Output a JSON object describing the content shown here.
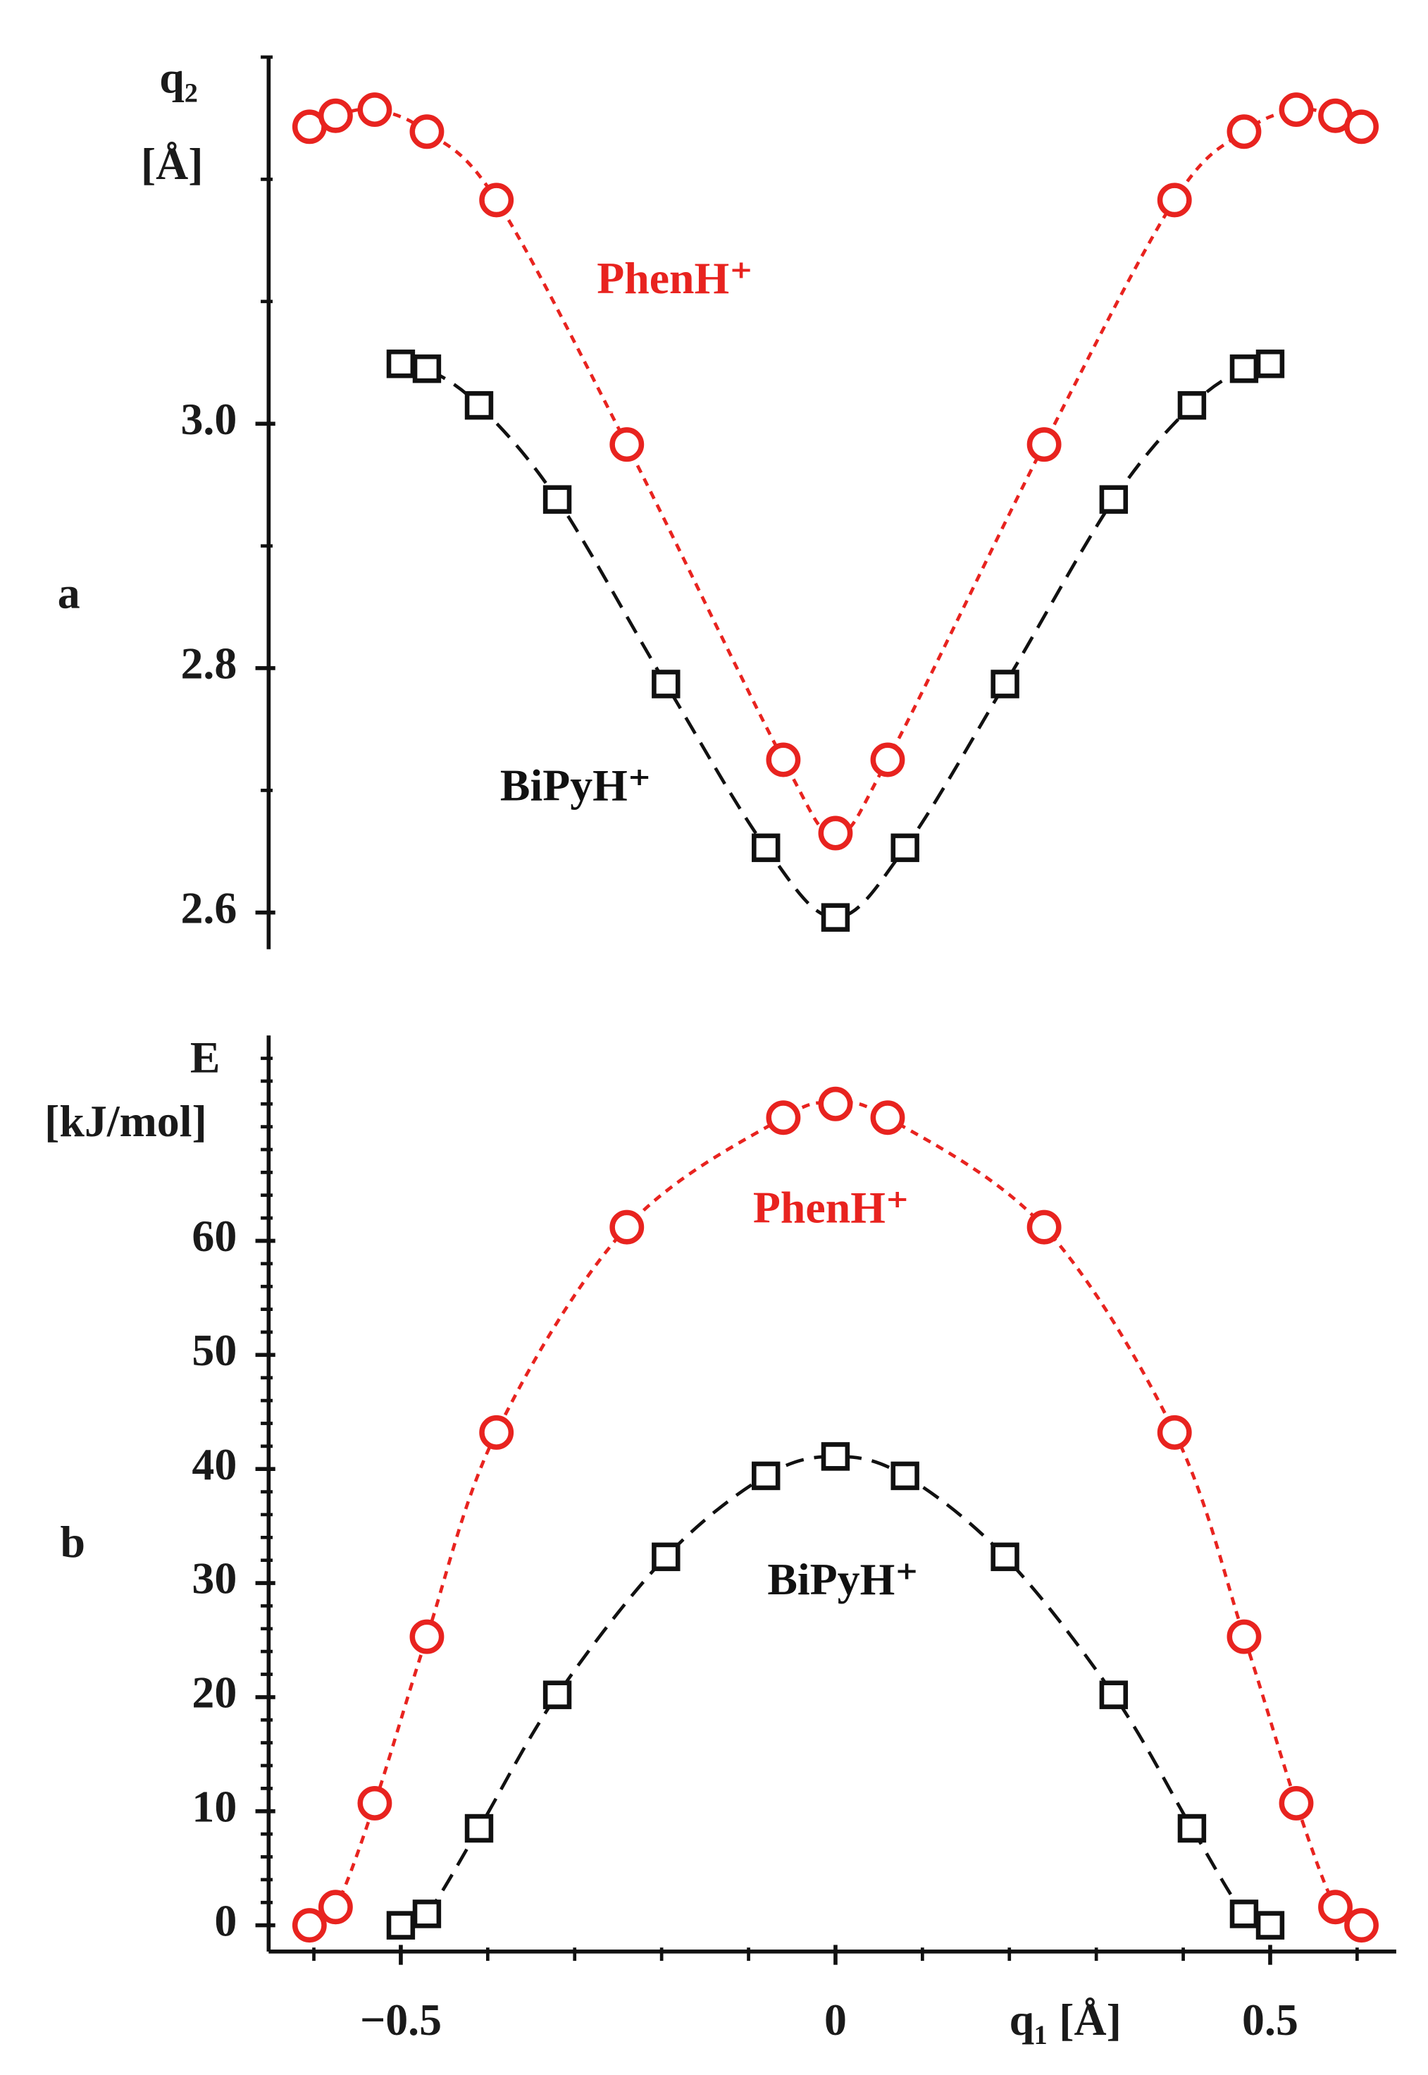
{
  "chart_data": [
    {
      "type": "scatter",
      "panel_label": "a",
      "y_label": [
        "q₂",
        "[Å]"
      ],
      "xlim": [
        -0.652,
        0.645
      ],
      "ylim": [
        2.57,
        3.3
      ],
      "yticks": [
        2.6,
        2.8,
        {
          "value": 3,
          "label": "3.0"
        }
      ],
      "yminor_ticks": [
        2.7,
        2.9,
        3.1,
        3.2,
        3.3
      ],
      "series": [
        {
          "name": "PhenH⁺",
          "color": "#e8231f",
          "marker": "circle",
          "x": [
            -0.605,
            -0.575,
            -0.53,
            -0.47,
            -0.39,
            -0.24,
            -0.06,
            0,
            0.06,
            0.24,
            0.39,
            0.47,
            0.53,
            0.575,
            0.605
          ],
          "values": [
            3.243,
            3.252,
            3.257,
            3.239,
            3.183,
            2.983,
            2.725,
            2.665,
            2.725,
            2.983,
            3.183,
            3.239,
            3.257,
            3.252,
            3.243
          ]
        },
        {
          "name": "BiPyH⁺",
          "color": "#111111",
          "marker": "square",
          "x": [
            -0.5,
            -0.47,
            -0.41,
            -0.32,
            -0.195,
            -0.08,
            0,
            0.08,
            0.195,
            0.32,
            0.41,
            0.47,
            0.5
          ],
          "values": [
            3.049,
            3.045,
            3.015,
            2.938,
            2.787,
            2.653,
            2.596,
            2.653,
            2.787,
            2.938,
            3.015,
            3.045,
            3.049
          ]
        }
      ]
    },
    {
      "type": "scatter",
      "panel_label": "b",
      "y_label": [
        "E",
        "[kJ/mol]"
      ],
      "x_label": "q₁ [Å]",
      "xlim": [
        -0.652,
        0.645
      ],
      "ylim": [
        -2.3,
        78
      ],
      "xticks": [
        {
          "value": -0.5,
          "label": "−0.5"
        },
        0,
        0.5
      ],
      "xminor_ticks": [
        -0.6,
        -0.4,
        -0.3,
        -0.2,
        -0.1,
        0.1,
        0.2,
        0.3,
        0.4,
        0.6
      ],
      "yticks": [
        0,
        10,
        20,
        30,
        40,
        50,
        60
      ],
      "yminor_ticks": [
        2,
        4,
        6,
        8,
        12,
        14,
        16,
        18,
        22,
        24,
        26,
        28,
        32,
        34,
        36,
        38,
        42,
        44,
        46,
        48,
        52,
        54,
        56,
        58,
        62,
        64,
        66,
        68,
        70,
        72,
        74,
        76
      ],
      "series": [
        {
          "name": "PhenH⁺",
          "color": "#e8231f",
          "marker": "circle",
          "x": [
            -0.605,
            -0.575,
            -0.53,
            -0.47,
            -0.39,
            -0.24,
            -0.06,
            0,
            0.06,
            0.24,
            0.39,
            0.47,
            0.53,
            0.575,
            0.605
          ],
          "values": [
            0,
            1.6,
            10.7,
            25.3,
            43.2,
            61.2,
            70.8,
            72.0,
            70.8,
            61.2,
            43.2,
            25.3,
            10.7,
            1.6,
            0
          ]
        },
        {
          "name": "BiPyH⁺",
          "color": "#111111",
          "marker": "square",
          "x": [
            -0.5,
            -0.47,
            -0.41,
            -0.32,
            -0.195,
            -0.08,
            0,
            0.08,
            0.195,
            0.32,
            0.41,
            0.47,
            0.5
          ],
          "values": [
            0,
            1.0,
            8.5,
            20.2,
            32.3,
            39.4,
            41.1,
            39.4,
            32.3,
            20.2,
            8.5,
            1.0,
            0
          ]
        }
      ]
    }
  ]
}
